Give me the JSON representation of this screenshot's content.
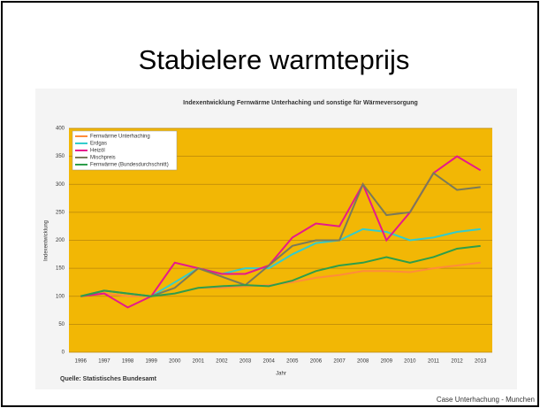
{
  "slide": {
    "title": "Stabielere warmteprijs",
    "footer": "Case Unterhachung - Munchen"
  },
  "chart_data": {
    "type": "line",
    "title": "Indexentwicklung Fernwärme Unterhaching und sonstige für Wärmeversorgung",
    "y_label": "Indexentwicklung",
    "x_label": "Jahr",
    "source": "Quelle: Statistisches Bundesamt",
    "categories": [
      "1996",
      "1997",
      "1998",
      "1999",
      "2000",
      "2001",
      "2002",
      "2003",
      "2004",
      "2005",
      "2006",
      "2007",
      "2008",
      "2009",
      "2010",
      "2011",
      "2012",
      "2013"
    ],
    "series": [
      {
        "name": "Fernwärme Unterhaching",
        "color": "#ff8c3a",
        "values": [
          100,
          105,
          100,
          100,
          105,
          115,
          115,
          118,
          120,
          125,
          133,
          138,
          145,
          145,
          143,
          150,
          155,
          160
        ]
      },
      {
        "name": "Erdgas",
        "color": "#33cccc",
        "values": [
          100,
          110,
          105,
          100,
          125,
          150,
          140,
          150,
          150,
          175,
          195,
          200,
          220,
          215,
          200,
          205,
          215,
          220
        ]
      },
      {
        "name": "Heizöl",
        "color": "#e6198c",
        "values": [
          100,
          105,
          80,
          100,
          160,
          150,
          140,
          140,
          155,
          205,
          230,
          225,
          300,
          200,
          250,
          320,
          350,
          325
        ]
      },
      {
        "name": "Mischpreis",
        "color": "#7a7a5a",
        "values": [
          100,
          110,
          105,
          100,
          115,
          150,
          135,
          120,
          155,
          190,
          200,
          200,
          300,
          245,
          250,
          320,
          290,
          295
        ]
      },
      {
        "name": "Fernwärme (Bundesdurchschnitt)",
        "color": "#2e9e4a",
        "values": [
          100,
          110,
          105,
          100,
          105,
          115,
          118,
          120,
          118,
          128,
          145,
          155,
          160,
          170,
          160,
          170,
          185,
          190
        ]
      }
    ],
    "ylim": [
      0,
      400
    ],
    "yticks": [
      0,
      50,
      100,
      150,
      200,
      250,
      300,
      350,
      400
    ],
    "grid": true,
    "legend": "top-left"
  }
}
